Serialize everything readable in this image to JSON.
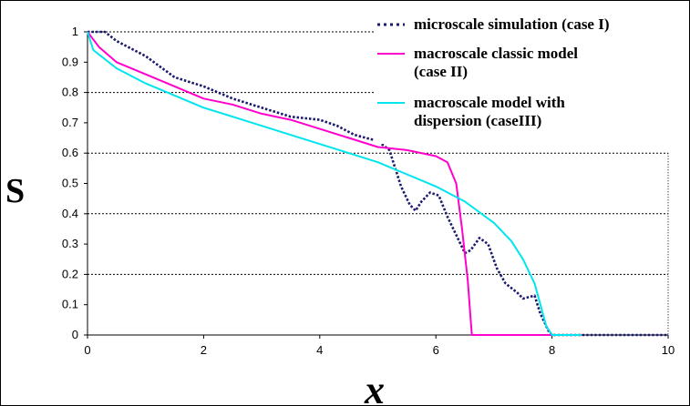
{
  "chart_data": {
    "type": "line",
    "xlabel": "x",
    "ylabel": "S",
    "xlim": [
      0,
      10
    ],
    "ylim": [
      0,
      1
    ],
    "x_ticks": [
      "0",
      "2",
      "4",
      "6",
      "8",
      "10"
    ],
    "y_ticks": [
      "0",
      "0.1",
      "0.2",
      "0.3",
      "0.4",
      "0.5",
      "0.6",
      "0.7",
      "0.8",
      "0.9",
      "1"
    ],
    "grid": "dashed horizontal lines at 0.2, 0.4, 0.6, 0.8, 1",
    "legend_position": "top-right",
    "series": [
      {
        "name": "microscale simulation (case I)",
        "legend_lines": [
          "microscale simulation (case I)"
        ],
        "color": "#1a1a6e",
        "style": "dotted",
        "points": [
          [
            0,
            1
          ],
          [
            0.3,
            1
          ],
          [
            0.5,
            0.97
          ],
          [
            1,
            0.92
          ],
          [
            1.5,
            0.85
          ],
          [
            2,
            0.82
          ],
          [
            2.5,
            0.78
          ],
          [
            3,
            0.75
          ],
          [
            3.5,
            0.72
          ],
          [
            4,
            0.71
          ],
          [
            4.3,
            0.69
          ],
          [
            4.6,
            0.66
          ],
          [
            5,
            0.64
          ],
          [
            5.2,
            0.61
          ],
          [
            5.4,
            0.49
          ],
          [
            5.55,
            0.43
          ],
          [
            5.65,
            0.41
          ],
          [
            5.75,
            0.44
          ],
          [
            5.9,
            0.47
          ],
          [
            6.05,
            0.46
          ],
          [
            6.2,
            0.39
          ],
          [
            6.35,
            0.33
          ],
          [
            6.5,
            0.27
          ],
          [
            6.6,
            0.28
          ],
          [
            6.75,
            0.32
          ],
          [
            6.9,
            0.3
          ],
          [
            7.05,
            0.22
          ],
          [
            7.2,
            0.17
          ],
          [
            7.4,
            0.14
          ],
          [
            7.5,
            0.12
          ],
          [
            7.7,
            0.13
          ],
          [
            7.8,
            0.07
          ],
          [
            7.95,
            0.01
          ],
          [
            8.0,
            0
          ],
          [
            8.5,
            0
          ],
          [
            10,
            0
          ]
        ]
      },
      {
        "name": "macroscale classic model (case II)",
        "legend_lines": [
          "macroscale classic model",
          "(case II)"
        ],
        "color": "#ff00cc",
        "style": "solid",
        "points": [
          [
            0,
            1
          ],
          [
            0.2,
            0.95
          ],
          [
            0.5,
            0.9
          ],
          [
            1,
            0.86
          ],
          [
            1.5,
            0.82
          ],
          [
            2,
            0.78
          ],
          [
            2.5,
            0.76
          ],
          [
            3,
            0.73
          ],
          [
            3.5,
            0.71
          ],
          [
            4,
            0.68
          ],
          [
            4.5,
            0.65
          ],
          [
            5,
            0.62
          ],
          [
            5.5,
            0.61
          ],
          [
            6,
            0.59
          ],
          [
            6.2,
            0.57
          ],
          [
            6.35,
            0.5
          ],
          [
            6.45,
            0.35
          ],
          [
            6.55,
            0.18
          ],
          [
            6.6,
            0.05
          ],
          [
            6.62,
            0
          ],
          [
            8,
            0
          ]
        ]
      },
      {
        "name": "macroscale model with dispersion (case III)",
        "legend_lines": [
          "macroscale model with",
          "dispersion (caseIII)"
        ],
        "color": "#00e5ee",
        "style": "solid",
        "points": [
          [
            0,
            1
          ],
          [
            0.1,
            0.94
          ],
          [
            0.5,
            0.88
          ],
          [
            1,
            0.83
          ],
          [
            1.5,
            0.79
          ],
          [
            2,
            0.75
          ],
          [
            2.5,
            0.72
          ],
          [
            3,
            0.69
          ],
          [
            3.5,
            0.66
          ],
          [
            4,
            0.63
          ],
          [
            4.5,
            0.6
          ],
          [
            5,
            0.57
          ],
          [
            5.5,
            0.53
          ],
          [
            6,
            0.49
          ],
          [
            6.5,
            0.44
          ],
          [
            7,
            0.37
          ],
          [
            7.3,
            0.31
          ],
          [
            7.5,
            0.25
          ],
          [
            7.7,
            0.17
          ],
          [
            7.8,
            0.1
          ],
          [
            7.9,
            0.03
          ],
          [
            8.0,
            0
          ],
          [
            8.5,
            0
          ]
        ]
      }
    ]
  }
}
